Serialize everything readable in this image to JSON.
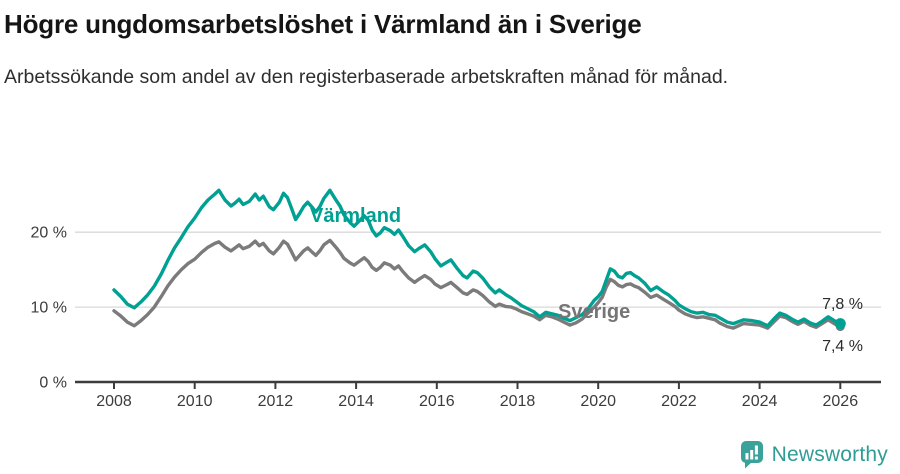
{
  "header": {
    "title": "Högre ungdomsarbetslöshet i Värmland än i Sverige",
    "subtitle": "Arbetssökande som andel av den registerbaserade arbetskraften månad för månad."
  },
  "footer": {
    "brand": "Newsworthy",
    "logo_icon": "bar-chart-speech-bubble-icon"
  },
  "colors": {
    "varmland": "#00a093",
    "sverige": "#7b7b7b",
    "grid": "#d9d9d9",
    "axis": "#3c3c3c",
    "label_text": "#2b2b2b",
    "brand": "#2f9d95"
  },
  "chart_data": {
    "type": "line",
    "title": "Högre ungdomsarbetslöshet i Värmland än i Sverige",
    "xlabel": "",
    "ylabel": "Arbetssökande som andel av den registerbaserade arbetskraften",
    "grid": "horizontal",
    "legend_position": "inline-labels",
    "x_range": [
      2007.5,
      2027
    ],
    "ylim": [
      0,
      27.5
    ],
    "x_axis": {
      "ticks": [
        2008,
        2010,
        2012,
        2014,
        2016,
        2018,
        2020,
        2022,
        2024,
        2026
      ]
    },
    "y_axis": {
      "ticks": [
        {
          "v": 0,
          "label": "0 %"
        },
        {
          "v": 10,
          "label": "10 %"
        },
        {
          "v": 20,
          "label": "20 %"
        }
      ]
    },
    "labels": {
      "varmland": "Värmland",
      "sverige": "Sverige",
      "end_varmland": "7,8 %",
      "end_sverige": "7,4 %"
    },
    "series": [
      {
        "name": "Sverige",
        "color": "#7b7b7b",
        "dot_r": 4.5,
        "end_label": "7,4 %",
        "points": [
          [
            2008.0,
            9.5
          ],
          [
            2008.17,
            8.8
          ],
          [
            2008.33,
            8.0
          ],
          [
            2008.5,
            7.5
          ],
          [
            2008.67,
            8.2
          ],
          [
            2008.83,
            9.0
          ],
          [
            2009.0,
            10.0
          ],
          [
            2009.17,
            11.4
          ],
          [
            2009.33,
            12.8
          ],
          [
            2009.5,
            14.0
          ],
          [
            2009.67,
            15.0
          ],
          [
            2009.83,
            15.8
          ],
          [
            2010.0,
            16.4
          ],
          [
            2010.17,
            17.3
          ],
          [
            2010.33,
            18.0
          ],
          [
            2010.5,
            18.5
          ],
          [
            2010.6,
            18.7
          ],
          [
            2010.75,
            18.0
          ],
          [
            2010.9,
            17.5
          ],
          [
            2011.0,
            17.9
          ],
          [
            2011.1,
            18.3
          ],
          [
            2011.2,
            17.8
          ],
          [
            2011.35,
            18.1
          ],
          [
            2011.5,
            18.8
          ],
          [
            2011.6,
            18.2
          ],
          [
            2011.7,
            18.5
          ],
          [
            2011.85,
            17.5
          ],
          [
            2011.95,
            17.1
          ],
          [
            2012.1,
            18.0
          ],
          [
            2012.2,
            18.8
          ],
          [
            2012.3,
            18.4
          ],
          [
            2012.4,
            17.4
          ],
          [
            2012.5,
            16.3
          ],
          [
            2012.6,
            16.9
          ],
          [
            2012.7,
            17.5
          ],
          [
            2012.8,
            17.9
          ],
          [
            2012.9,
            17.4
          ],
          [
            2013.0,
            16.9
          ],
          [
            2013.1,
            17.5
          ],
          [
            2013.2,
            18.3
          ],
          [
            2013.35,
            18.9
          ],
          [
            2013.5,
            18.0
          ],
          [
            2013.6,
            17.3
          ],
          [
            2013.7,
            16.5
          ],
          [
            2013.85,
            15.9
          ],
          [
            2013.95,
            15.6
          ],
          [
            2014.1,
            16.2
          ],
          [
            2014.2,
            16.6
          ],
          [
            2014.3,
            16.1
          ],
          [
            2014.4,
            15.3
          ],
          [
            2014.5,
            14.9
          ],
          [
            2014.6,
            15.3
          ],
          [
            2014.7,
            15.9
          ],
          [
            2014.85,
            15.6
          ],
          [
            2014.95,
            15.1
          ],
          [
            2015.05,
            15.5
          ],
          [
            2015.15,
            14.8
          ],
          [
            2015.3,
            13.9
          ],
          [
            2015.45,
            13.3
          ],
          [
            2015.55,
            13.7
          ],
          [
            2015.7,
            14.2
          ],
          [
            2015.85,
            13.7
          ],
          [
            2015.95,
            13.1
          ],
          [
            2016.1,
            12.6
          ],
          [
            2016.25,
            13.0
          ],
          [
            2016.35,
            13.3
          ],
          [
            2016.5,
            12.6
          ],
          [
            2016.65,
            11.9
          ],
          [
            2016.75,
            11.7
          ],
          [
            2016.9,
            12.3
          ],
          [
            2017.0,
            12.1
          ],
          [
            2017.15,
            11.5
          ],
          [
            2017.3,
            10.7
          ],
          [
            2017.45,
            10.1
          ],
          [
            2017.55,
            10.4
          ],
          [
            2017.7,
            10.1
          ],
          [
            2017.85,
            10.0
          ],
          [
            2017.95,
            9.8
          ],
          [
            2018.1,
            9.4
          ],
          [
            2018.25,
            9.1
          ],
          [
            2018.4,
            8.8
          ],
          [
            2018.55,
            8.3
          ],
          [
            2018.7,
            8.9
          ],
          [
            2018.85,
            8.7
          ],
          [
            2019.0,
            8.4
          ],
          [
            2019.15,
            8.0
          ],
          [
            2019.3,
            7.6
          ],
          [
            2019.45,
            7.9
          ],
          [
            2019.6,
            8.4
          ],
          [
            2019.75,
            9.2
          ],
          [
            2019.9,
            10.0
          ],
          [
            2020.0,
            10.6
          ],
          [
            2020.1,
            11.3
          ],
          [
            2020.2,
            12.7
          ],
          [
            2020.3,
            13.7
          ],
          [
            2020.4,
            13.4
          ],
          [
            2020.5,
            12.9
          ],
          [
            2020.6,
            12.7
          ],
          [
            2020.7,
            13.0
          ],
          [
            2020.8,
            13.1
          ],
          [
            2020.9,
            12.8
          ],
          [
            2021.0,
            12.6
          ],
          [
            2021.15,
            12.0
          ],
          [
            2021.3,
            11.3
          ],
          [
            2021.45,
            11.6
          ],
          [
            2021.6,
            11.1
          ],
          [
            2021.75,
            10.6
          ],
          [
            2021.9,
            10.1
          ],
          [
            2022.0,
            9.6
          ],
          [
            2022.15,
            9.1
          ],
          [
            2022.3,
            8.8
          ],
          [
            2022.45,
            8.6
          ],
          [
            2022.6,
            8.7
          ],
          [
            2022.75,
            8.5
          ],
          [
            2022.9,
            8.3
          ],
          [
            2023.0,
            7.9
          ],
          [
            2023.2,
            7.4
          ],
          [
            2023.35,
            7.2
          ],
          [
            2023.6,
            7.8
          ],
          [
            2023.8,
            7.7
          ],
          [
            2024.0,
            7.6
          ],
          [
            2024.2,
            7.2
          ],
          [
            2024.35,
            8.0
          ],
          [
            2024.5,
            8.8
          ],
          [
            2024.65,
            8.6
          ],
          [
            2024.8,
            8.1
          ],
          [
            2024.95,
            7.7
          ],
          [
            2025.1,
            8.1
          ],
          [
            2025.25,
            7.6
          ],
          [
            2025.4,
            7.3
          ],
          [
            2025.55,
            7.8
          ],
          [
            2025.7,
            8.3
          ],
          [
            2025.85,
            7.8
          ],
          [
            2026.0,
            7.4
          ]
        ]
      },
      {
        "name": "Värmland",
        "color": "#00a093",
        "dot_r": 5.5,
        "end_label": "7,8 %",
        "points": [
          [
            2008.0,
            12.3
          ],
          [
            2008.17,
            11.4
          ],
          [
            2008.33,
            10.4
          ],
          [
            2008.5,
            9.9
          ],
          [
            2008.67,
            10.7
          ],
          [
            2008.83,
            11.6
          ],
          [
            2009.0,
            12.8
          ],
          [
            2009.17,
            14.4
          ],
          [
            2009.33,
            16.2
          ],
          [
            2009.5,
            17.9
          ],
          [
            2009.67,
            19.3
          ],
          [
            2009.83,
            20.7
          ],
          [
            2010.0,
            21.9
          ],
          [
            2010.17,
            23.3
          ],
          [
            2010.33,
            24.3
          ],
          [
            2010.5,
            25.1
          ],
          [
            2010.6,
            25.6
          ],
          [
            2010.75,
            24.3
          ],
          [
            2010.9,
            23.5
          ],
          [
            2011.0,
            23.9
          ],
          [
            2011.1,
            24.4
          ],
          [
            2011.2,
            23.7
          ],
          [
            2011.35,
            24.1
          ],
          [
            2011.5,
            25.1
          ],
          [
            2011.6,
            24.3
          ],
          [
            2011.7,
            24.8
          ],
          [
            2011.85,
            23.4
          ],
          [
            2011.95,
            23.0
          ],
          [
            2012.1,
            24.0
          ],
          [
            2012.2,
            25.2
          ],
          [
            2012.3,
            24.6
          ],
          [
            2012.4,
            23.2
          ],
          [
            2012.5,
            21.7
          ],
          [
            2012.6,
            22.5
          ],
          [
            2012.7,
            23.4
          ],
          [
            2012.8,
            24.0
          ],
          [
            2012.9,
            23.4
          ],
          [
            2013.0,
            22.7
          ],
          [
            2013.1,
            23.4
          ],
          [
            2013.2,
            24.5
          ],
          [
            2013.35,
            25.6
          ],
          [
            2013.5,
            24.3
          ],
          [
            2013.6,
            23.5
          ],
          [
            2013.7,
            22.3
          ],
          [
            2013.85,
            21.3
          ],
          [
            2013.95,
            20.8
          ],
          [
            2014.1,
            21.6
          ],
          [
            2014.2,
            22.2
          ],
          [
            2014.3,
            21.6
          ],
          [
            2014.4,
            20.3
          ],
          [
            2014.5,
            19.5
          ],
          [
            2014.6,
            19.9
          ],
          [
            2014.7,
            20.6
          ],
          [
            2014.85,
            20.2
          ],
          [
            2014.95,
            19.7
          ],
          [
            2015.05,
            20.3
          ],
          [
            2015.15,
            19.5
          ],
          [
            2015.3,
            18.2
          ],
          [
            2015.45,
            17.4
          ],
          [
            2015.55,
            17.8
          ],
          [
            2015.7,
            18.3
          ],
          [
            2015.85,
            17.4
          ],
          [
            2015.95,
            16.5
          ],
          [
            2016.1,
            15.5
          ],
          [
            2016.25,
            16.0
          ],
          [
            2016.35,
            16.3
          ],
          [
            2016.5,
            15.2
          ],
          [
            2016.65,
            14.2
          ],
          [
            2016.75,
            13.9
          ],
          [
            2016.9,
            14.8
          ],
          [
            2017.0,
            14.6
          ],
          [
            2017.15,
            13.8
          ],
          [
            2017.3,
            12.7
          ],
          [
            2017.45,
            11.9
          ],
          [
            2017.55,
            12.3
          ],
          [
            2017.7,
            11.7
          ],
          [
            2017.85,
            11.2
          ],
          [
            2017.95,
            10.8
          ],
          [
            2018.1,
            10.2
          ],
          [
            2018.25,
            9.8
          ],
          [
            2018.4,
            9.4
          ],
          [
            2018.55,
            8.7
          ],
          [
            2018.7,
            9.3
          ],
          [
            2018.85,
            9.1
          ],
          [
            2019.0,
            8.9
          ],
          [
            2019.15,
            8.5
          ],
          [
            2019.3,
            8.2
          ],
          [
            2019.45,
            8.6
          ],
          [
            2019.6,
            9.0
          ],
          [
            2019.75,
            9.8
          ],
          [
            2019.9,
            10.9
          ],
          [
            2020.0,
            11.4
          ],
          [
            2020.1,
            12.1
          ],
          [
            2020.2,
            13.6
          ],
          [
            2020.3,
            15.1
          ],
          [
            2020.4,
            14.8
          ],
          [
            2020.5,
            14.1
          ],
          [
            2020.6,
            13.9
          ],
          [
            2020.7,
            14.5
          ],
          [
            2020.8,
            14.6
          ],
          [
            2020.9,
            14.2
          ],
          [
            2021.0,
            13.9
          ],
          [
            2021.15,
            13.2
          ],
          [
            2021.3,
            12.2
          ],
          [
            2021.45,
            12.7
          ],
          [
            2021.6,
            12.1
          ],
          [
            2021.75,
            11.6
          ],
          [
            2021.9,
            10.9
          ],
          [
            2022.0,
            10.3
          ],
          [
            2022.15,
            9.8
          ],
          [
            2022.3,
            9.4
          ],
          [
            2022.45,
            9.2
          ],
          [
            2022.6,
            9.3
          ],
          [
            2022.75,
            9.0
          ],
          [
            2022.9,
            8.9
          ],
          [
            2023.0,
            8.6
          ],
          [
            2023.2,
            8.0
          ],
          [
            2023.35,
            7.8
          ],
          [
            2023.6,
            8.3
          ],
          [
            2023.8,
            8.2
          ],
          [
            2024.0,
            8.0
          ],
          [
            2024.2,
            7.5
          ],
          [
            2024.35,
            8.4
          ],
          [
            2024.5,
            9.2
          ],
          [
            2024.65,
            8.9
          ],
          [
            2024.8,
            8.4
          ],
          [
            2024.95,
            8.0
          ],
          [
            2025.1,
            8.4
          ],
          [
            2025.25,
            7.9
          ],
          [
            2025.4,
            7.6
          ],
          [
            2025.55,
            8.1
          ],
          [
            2025.7,
            8.7
          ],
          [
            2025.85,
            8.2
          ],
          [
            2026.0,
            7.8
          ]
        ]
      }
    ]
  }
}
